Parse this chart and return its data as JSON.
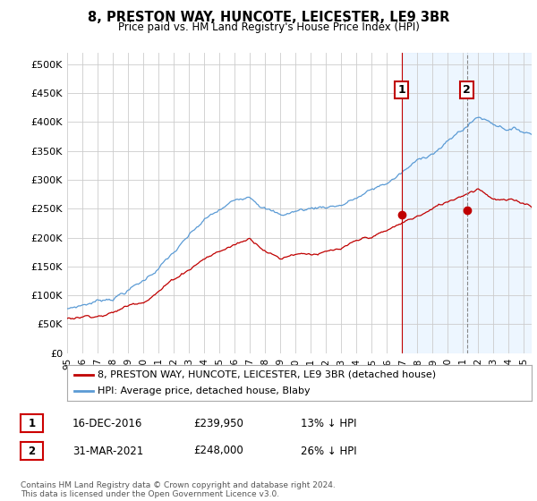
{
  "title": "8, PRESTON WAY, HUNCOTE, LEICESTER, LE9 3BR",
  "subtitle": "Price paid vs. HM Land Registry's House Price Index (HPI)",
  "ylabel_ticks": [
    "£0",
    "£50K",
    "£100K",
    "£150K",
    "£200K",
    "£250K",
    "£300K",
    "£350K",
    "£400K",
    "£450K",
    "£500K"
  ],
  "ytick_values": [
    0,
    50000,
    100000,
    150000,
    200000,
    250000,
    300000,
    350000,
    400000,
    450000,
    500000
  ],
  "ylim": [
    0,
    520000
  ],
  "xlim_start": 1995.0,
  "xlim_end": 2025.5,
  "hpi_color": "#5b9bd5",
  "price_color": "#c00000",
  "marker1_date": 2016.96,
  "marker1_value": 239950,
  "marker2_date": 2021.25,
  "marker2_value": 248000,
  "legend_line1": "8, PRESTON WAY, HUNCOTE, LEICESTER, LE9 3BR (detached house)",
  "legend_line2": "HPI: Average price, detached house, Blaby",
  "footer": "Contains HM Land Registry data © Crown copyright and database right 2024.\nThis data is licensed under the Open Government Licence v3.0.",
  "background_color": "#ffffff",
  "grid_color": "#cccccc",
  "shade_color": "#ddeeff",
  "shade_alpha": 0.5,
  "row1_date": "16-DEC-2016",
  "row1_price": "£239,950",
  "row1_pct": "13% ↓ HPI",
  "row2_date": "31-MAR-2021",
  "row2_price": "£248,000",
  "row2_pct": "26% ↓ HPI"
}
